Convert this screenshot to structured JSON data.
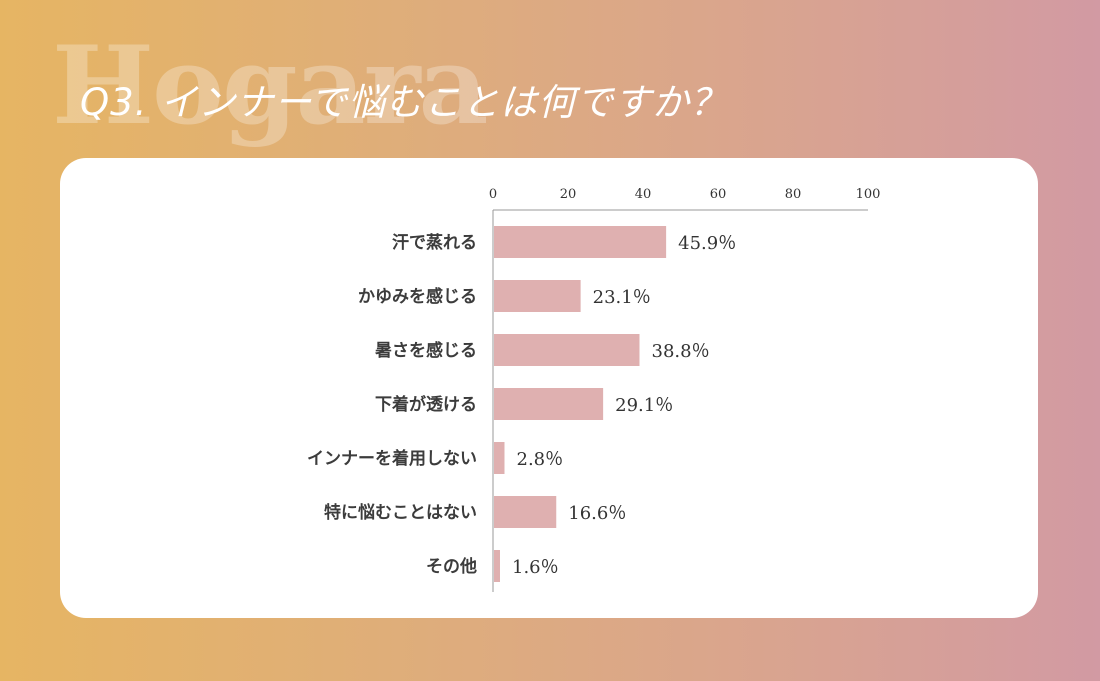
{
  "header": {
    "watermark": "Hogara",
    "question": "Q3. インナーで悩むことは何ですか？"
  },
  "colors": {
    "bar": "#dfb0b0",
    "card": "#ffffff",
    "axis": "#999999"
  },
  "chart_data": {
    "type": "bar",
    "orientation": "horizontal",
    "title": "",
    "xlabel": "",
    "ylabel": "",
    "xlim": [
      0,
      100
    ],
    "ticks": [
      0,
      20,
      40,
      60,
      80,
      100
    ],
    "tick_labels": [
      "0",
      "20",
      "40",
      "60",
      "80",
      "100"
    ],
    "grid": false,
    "categories": [
      "汗で蒸れる",
      "かゆみを感じる",
      "暑さを感じる",
      "下着が透ける",
      "インナーを着用しない",
      "特に悩むことはない",
      "その他"
    ],
    "values": [
      45.9,
      23.1,
      38.8,
      29.1,
      2.8,
      16.6,
      1.6
    ],
    "value_labels": [
      "45.9％",
      "23.1％",
      "38.8％",
      "29.1％",
      "2.8％",
      "16.6％",
      "1.6％"
    ]
  }
}
